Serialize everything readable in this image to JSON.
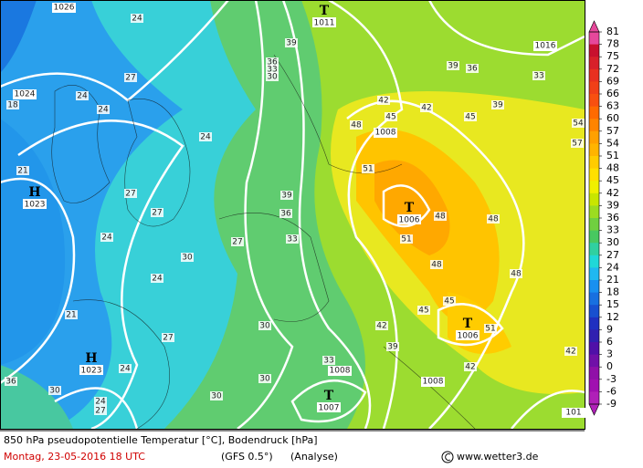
{
  "map": {
    "centers": [
      {
        "symbol": "T",
        "pressure": 1011
      },
      {
        "symbol": "H",
        "pressure": 1023
      },
      {
        "symbol": "T",
        "pressure": 1006
      },
      {
        "symbol": "T",
        "pressure": 1006
      },
      {
        "symbol": "H",
        "pressure": 1023
      },
      {
        "symbol": "T",
        "pressure": 1007
      }
    ],
    "isobar_labels": [
      1026,
      1016,
      1024,
      1008,
      1008,
      1008,
      101
    ],
    "temp_labels": [
      24,
      27,
      24,
      18,
      21,
      24,
      24,
      27,
      27,
      24,
      27,
      24,
      30,
      21,
      27,
      24,
      36,
      30,
      24,
      27,
      30,
      33,
      36,
      39,
      36,
      33,
      30,
      39,
      42,
      45,
      48,
      42,
      45,
      39,
      36,
      39,
      33,
      54,
      57,
      51,
      48,
      48,
      51,
      48,
      48,
      45,
      45,
      51,
      42,
      39,
      33,
      30,
      30,
      42,
      42
    ]
  },
  "colorbar": {
    "ticks": [
      81,
      78,
      75,
      72,
      69,
      66,
      63,
      60,
      57,
      54,
      51,
      48,
      45,
      42,
      39,
      36,
      33,
      30,
      27,
      24,
      21,
      18,
      15,
      12,
      9,
      6,
      3,
      0,
      -3,
      -6,
      -9
    ],
    "colors": [
      "#e6489b",
      "#c8102e",
      "#d8202a",
      "#e83020",
      "#f04018",
      "#f85010",
      "#ff6a00",
      "#ff8400",
      "#ffa000",
      "#ffb400",
      "#ffcc00",
      "#ffe000",
      "#f0f000",
      "#c8e600",
      "#9cdc20",
      "#70d040",
      "#48c860",
      "#30d0a0",
      "#20d8d8",
      "#20b8f0",
      "#1890f0",
      "#1870e0",
      "#1850d0",
      "#2030c0",
      "#3020b0",
      "#5010a8",
      "#7010a8",
      "#9010a8",
      "#a010b0",
      "#b020b8"
    ]
  },
  "footer": {
    "title": "850 hPa pseudopotentielle Temperatur [°C], Bodendruck [hPa]",
    "date": "Montag, 23-05-2016  18 UTC",
    "model": "(GFS 0.5°)",
    "mode": "(Analyse)",
    "credit": "www.wetter3.de"
  }
}
